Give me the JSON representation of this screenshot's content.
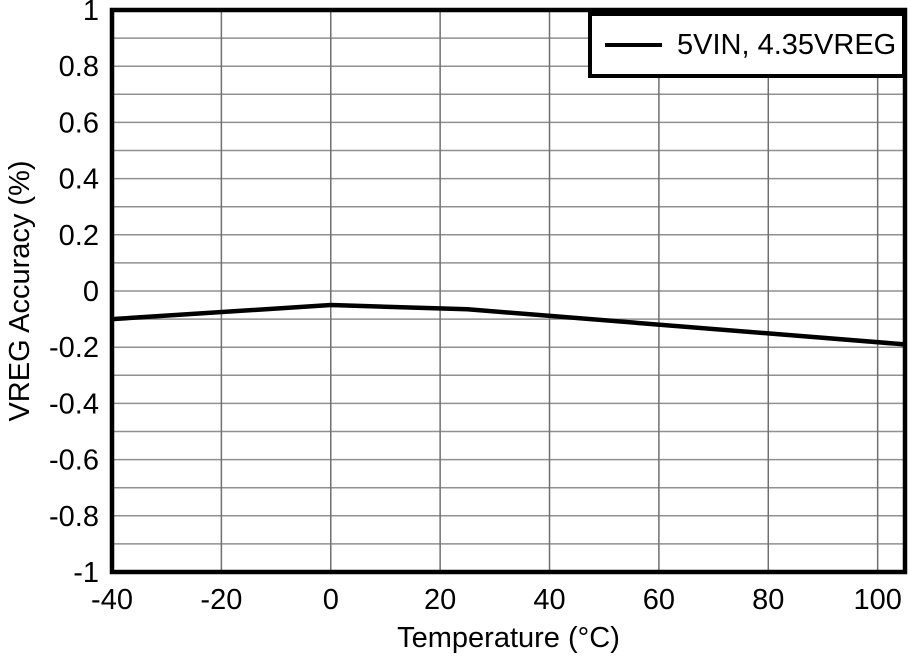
{
  "chart_data": {
    "type": "line",
    "title": "",
    "xlabel": "Temperature (°C)",
    "ylabel": "VREG Accuracy (%)",
    "xlim": [
      -40,
      105
    ],
    "ylim": [
      -1,
      1
    ],
    "x_ticks": [
      -40,
      -20,
      0,
      20,
      40,
      60,
      80,
      100
    ],
    "y_ticks": [
      1,
      0.8,
      0.6,
      0.4,
      0.2,
      0,
      -0.2,
      -0.4,
      -0.6,
      -0.8,
      -1
    ],
    "x_grid_step": 20,
    "y_grid_step": 0.1,
    "grid": true,
    "legend_position": "top-right",
    "series": [
      {
        "name": "5VIN, 4.35VREG",
        "color": "#000000",
        "x": [
          -40,
          0,
          25,
          105
        ],
        "y": [
          -0.1,
          -0.05,
          -0.065,
          -0.19
        ]
      }
    ],
    "colors": {
      "frame": "#000000",
      "h_grid": "#909090",
      "v_grid": "#707070",
      "text": "#000000",
      "background": "#ffffff"
    }
  }
}
